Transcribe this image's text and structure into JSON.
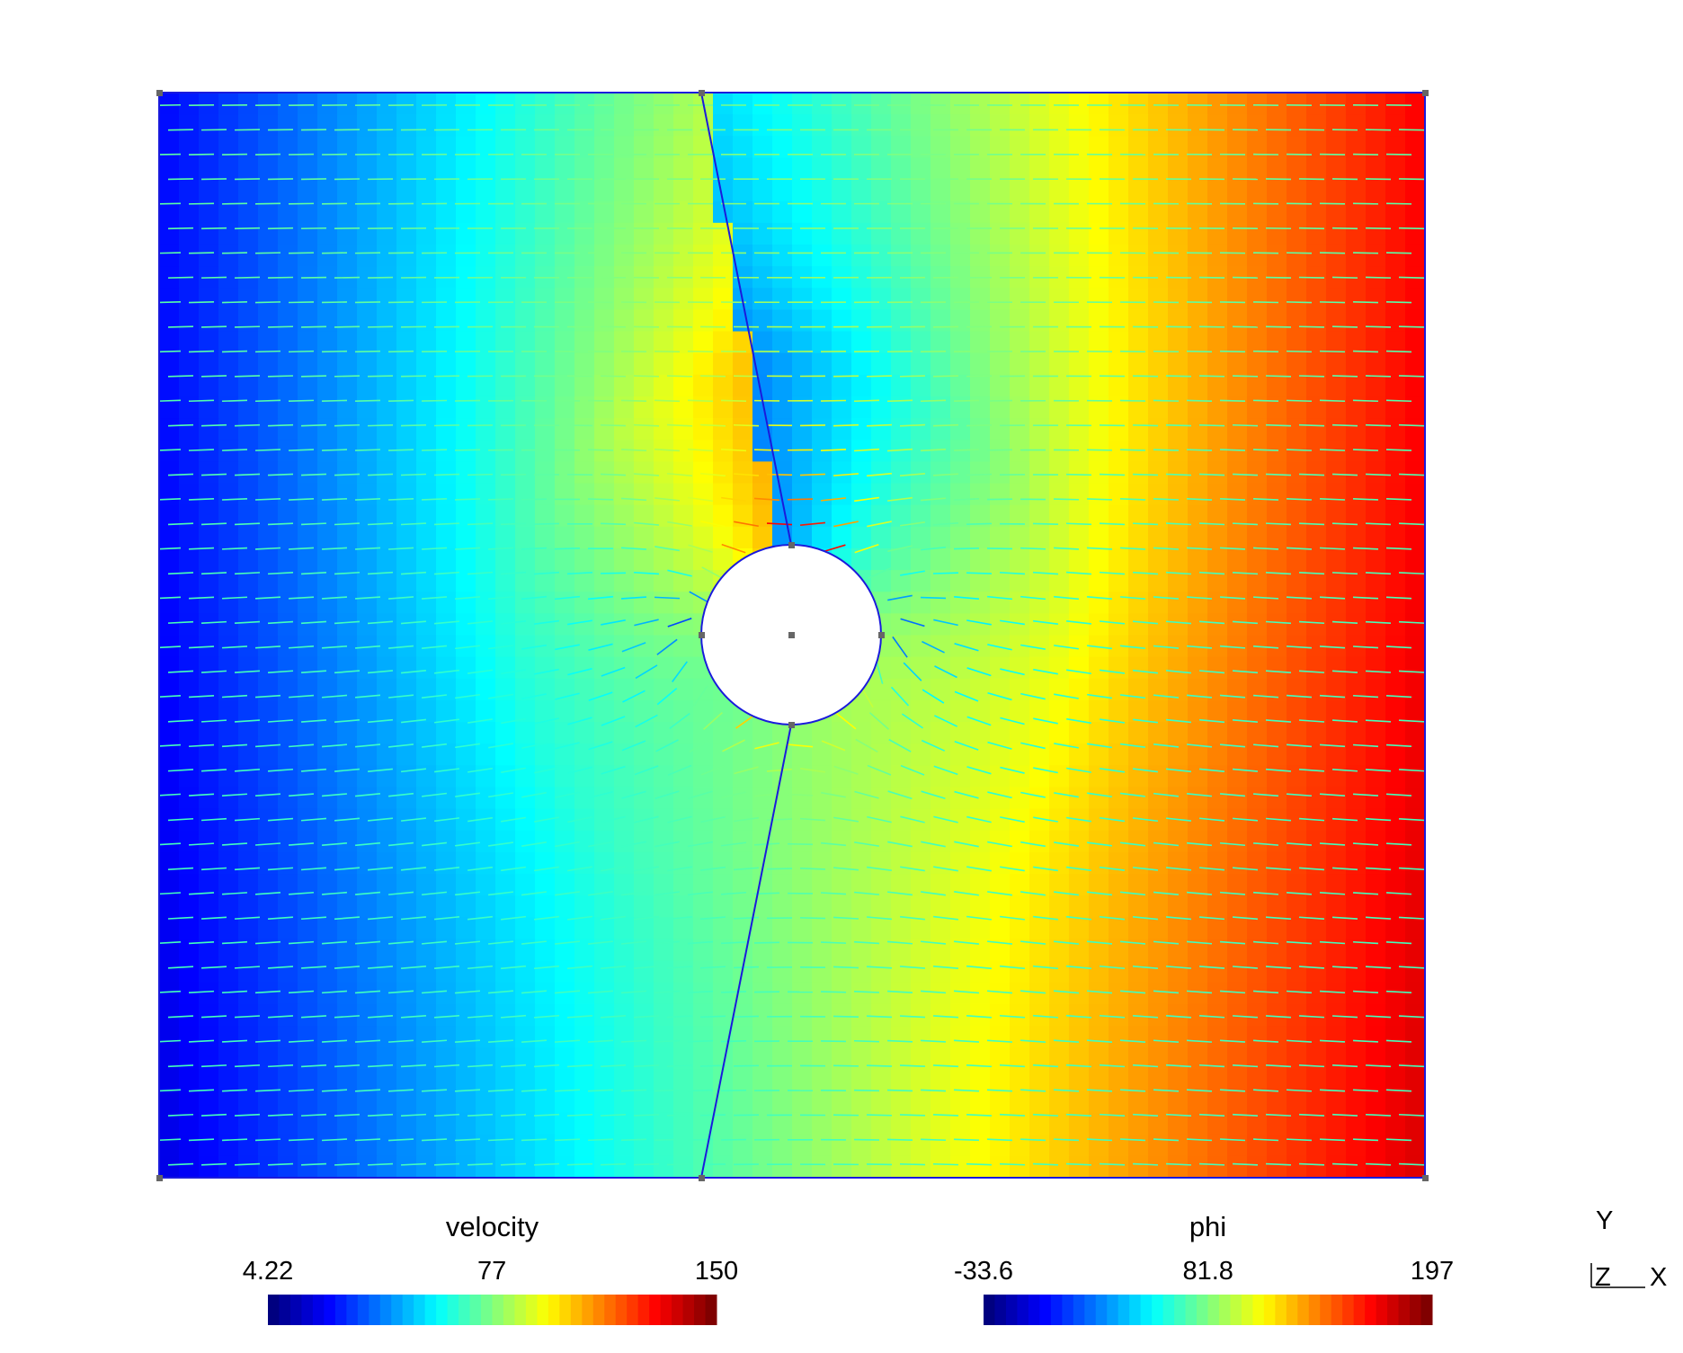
{
  "colorbars": [
    {
      "title": "velocity",
      "ticks": [
        4.22,
        77,
        150
      ]
    },
    {
      "title": "phi",
      "ticks": [
        -33.6,
        81.8,
        197
      ]
    }
  ],
  "axes_triad": {
    "y": "Y",
    "z": "Z",
    "x": "X"
  }
}
